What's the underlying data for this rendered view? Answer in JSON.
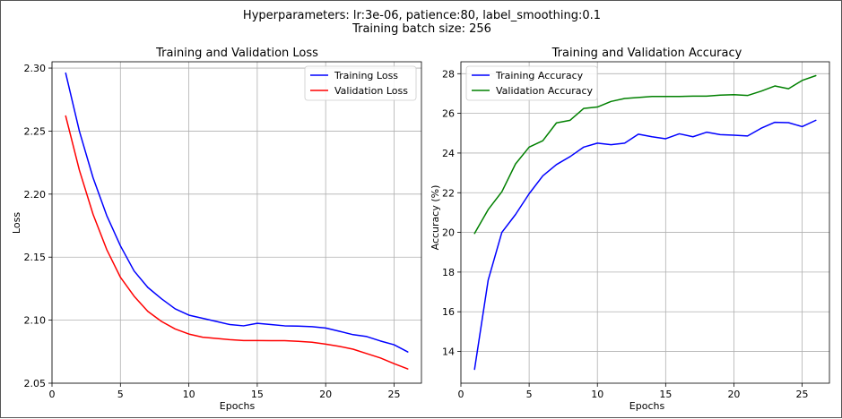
{
  "figure": {
    "suptitle_line1": "Hyperparameters: lr:3e-06, patience:80, label_smoothing:0.1",
    "suptitle_line2": "Training batch size: 256"
  },
  "chart_data": [
    {
      "type": "line",
      "title": "Training and Validation Loss",
      "xlabel": "Epochs",
      "ylabel": "Loss",
      "xlim": [
        0,
        27
      ],
      "ylim": [
        2.05,
        2.305
      ],
      "xticks": [
        0,
        5,
        10,
        15,
        20,
        25
      ],
      "yticks": [
        2.05,
        2.1,
        2.15,
        2.2,
        2.25,
        2.3
      ],
      "ytick_labels": [
        "2.05",
        "2.10",
        "2.15",
        "2.20",
        "2.25",
        "2.30"
      ],
      "grid": true,
      "legend": "upper right",
      "x": [
        1,
        2,
        3,
        4,
        5,
        6,
        7,
        8,
        9,
        10,
        11,
        12,
        13,
        14,
        15,
        16,
        17,
        18,
        19,
        20,
        21,
        22,
        23,
        24,
        25,
        26
      ],
      "series": [
        {
          "name": "Training Loss",
          "color": "#0000ff",
          "values": [
            2.296,
            2.25,
            2.213,
            2.183,
            2.159,
            2.139,
            2.126,
            2.117,
            2.109,
            2.104,
            2.1015,
            2.099,
            2.0965,
            2.0955,
            2.0975,
            2.0965,
            2.0955,
            2.0953,
            2.0948,
            2.0938,
            2.0912,
            2.0885,
            2.087,
            2.0835,
            2.0805,
            2.0748
          ]
        },
        {
          "name": "Validation Loss",
          "color": "#ff0000",
          "values": [
            2.262,
            2.219,
            2.184,
            2.156,
            2.134,
            2.119,
            2.107,
            2.099,
            2.093,
            2.089,
            2.0865,
            2.0855,
            2.0845,
            2.0838,
            2.0838,
            2.0837,
            2.0837,
            2.0832,
            2.0825,
            2.081,
            2.0792,
            2.077,
            2.0735,
            2.07,
            2.0655,
            2.0613
          ]
        }
      ]
    },
    {
      "type": "line",
      "title": "Training and Validation Accuracy",
      "xlabel": "Epochs",
      "ylabel": "Accuracy (%)",
      "xlim": [
        0,
        27
      ],
      "ylim": [
        12.4,
        28.6
      ],
      "xticks": [
        0,
        5,
        10,
        15,
        20,
        25
      ],
      "yticks": [
        14,
        16,
        18,
        20,
        22,
        24,
        26,
        28
      ],
      "ytick_labels": [
        "14",
        "16",
        "18",
        "20",
        "22",
        "24",
        "26",
        "28"
      ],
      "grid": true,
      "legend": "upper left",
      "x": [
        1,
        2,
        3,
        4,
        5,
        6,
        7,
        8,
        9,
        10,
        11,
        12,
        13,
        14,
        15,
        16,
        17,
        18,
        19,
        20,
        21,
        22,
        23,
        24,
        25,
        26
      ],
      "series": [
        {
          "name": "Training Accuracy",
          "color": "#0000ff",
          "values": [
            13.1,
            17.6,
            20.0,
            20.9,
            21.95,
            22.85,
            23.42,
            23.82,
            24.3,
            24.5,
            24.42,
            24.5,
            24.95,
            24.82,
            24.72,
            24.97,
            24.82,
            25.05,
            24.93,
            24.9,
            24.86,
            25.25,
            25.55,
            25.53,
            25.33,
            25.65
          ]
        },
        {
          "name": "Validation Accuracy",
          "color": "#008000",
          "values": [
            19.95,
            21.15,
            22.05,
            23.45,
            24.3,
            24.62,
            25.52,
            25.65,
            26.25,
            26.32,
            26.6,
            26.75,
            26.8,
            26.85,
            26.85,
            26.85,
            26.87,
            26.87,
            26.92,
            26.94,
            26.9,
            27.12,
            27.38,
            27.24,
            27.66,
            27.9
          ]
        }
      ]
    }
  ]
}
